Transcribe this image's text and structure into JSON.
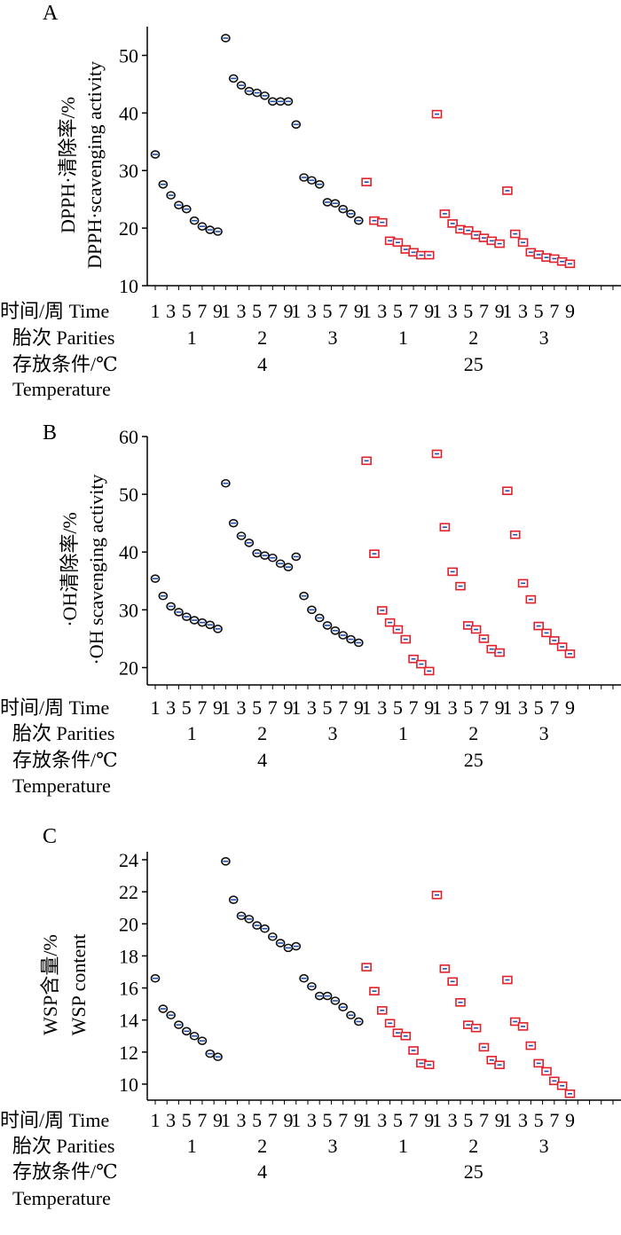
{
  "chart_data": [
    {
      "type": "scatter",
      "panel_label": "A",
      "ylabel": [
        "DPPH·清除率/%",
        "DPPH·scavenging activity"
      ],
      "ylim": [
        10,
        55
      ],
      "yticks": [
        10,
        20,
        30,
        40,
        50
      ],
      "row_labels": [
        "时间/周 Time",
        "胎次 Parities",
        "存放条件/℃",
        "Temperature"
      ],
      "time_ticks": [
        "1",
        "3",
        "5",
        "7",
        "9",
        "1",
        "3",
        "5",
        "7",
        "9",
        "1",
        "3",
        "5",
        "7",
        "9",
        "1",
        "3",
        "5",
        "7",
        "9",
        "1",
        "3",
        "5",
        "7",
        "9",
        "1",
        "3",
        "5",
        "7",
        "9"
      ],
      "parities": [
        "1",
        "2",
        "3",
        "1",
        "2",
        "3"
      ],
      "temperatures": [
        "4",
        "25"
      ],
      "series": [
        {
          "marker": "circle",
          "color": "#1f4fa8",
          "values": [
            [
              32.8,
              27.6,
              25.7,
              24.0,
              23.3,
              21.3,
              20.3,
              19.7,
              19.4
            ],
            [
              53.0,
              46.0,
              44.8,
              43.8,
              43.5,
              43.0,
              42.0,
              42.0,
              42.0
            ],
            [
              38.0,
              28.8,
              28.3,
              27.6,
              24.5,
              24.3,
              23.3,
              22.5,
              21.3
            ]
          ]
        },
        {
          "marker": "square",
          "color": "#e0202a",
          "values": [
            [
              28.0,
              21.3,
              21.0,
              17.8,
              17.5,
              16.3,
              15.8,
              15.3,
              15.3
            ],
            [
              39.8,
              22.5,
              20.8,
              19.8,
              19.6,
              18.8,
              18.3,
              17.8,
              17.3
            ],
            [
              26.5,
              19.0,
              17.5,
              15.8,
              15.4,
              14.9,
              14.7,
              14.2,
              13.8
            ]
          ]
        }
      ]
    },
    {
      "type": "scatter",
      "panel_label": "B",
      "ylabel": [
        "·OH清除率/%",
        "·OH scavenging activity"
      ],
      "ylim": [
        17,
        60
      ],
      "yticks": [
        20,
        30,
        40,
        50,
        60
      ],
      "row_labels": [
        "时间/周 Time",
        "胎次 Parities",
        "存放条件/℃",
        "Temperature"
      ],
      "time_ticks": [
        "1",
        "3",
        "5",
        "7",
        "9",
        "1",
        "3",
        "5",
        "7",
        "9",
        "1",
        "3",
        "5",
        "7",
        "9",
        "1",
        "3",
        "5",
        "7",
        "9",
        "1",
        "3",
        "5",
        "7",
        "9",
        "1",
        "3",
        "5",
        "7",
        "9"
      ],
      "parities": [
        "1",
        "2",
        "3",
        "1",
        "2",
        "3"
      ],
      "temperatures": [
        "4",
        "25"
      ],
      "series": [
        {
          "marker": "circle",
          "color": "#1f4fa8",
          "values": [
            [
              35.4,
              32.4,
              30.6,
              29.6,
              28.8,
              28.2,
              27.8,
              27.4,
              26.7
            ],
            [
              51.9,
              45.0,
              42.8,
              41.6,
              39.8,
              39.4,
              39.0,
              38.0,
              37.4
            ],
            [
              39.2,
              32.4,
              30.0,
              28.6,
              27.3,
              26.4,
              25.6,
              24.9,
              24.3
            ]
          ]
        },
        {
          "marker": "square",
          "color": "#e0202a",
          "values": [
            [
              55.8,
              39.7,
              29.9,
              27.8,
              26.6,
              24.9,
              21.5,
              20.6,
              19.4
            ],
            [
              57.0,
              44.3,
              36.6,
              34.1,
              27.3,
              26.6,
              25.0,
              23.2,
              22.6
            ],
            [
              50.6,
              43.0,
              34.6,
              31.8,
              27.2,
              26.0,
              24.7,
              23.6,
              22.4
            ]
          ]
        }
      ]
    },
    {
      "type": "scatter",
      "panel_label": "C",
      "ylabel": [
        "WSP含量/%",
        "WSP content"
      ],
      "ylim": [
        9,
        24.5
      ],
      "yticks": [
        10,
        12,
        14,
        16,
        18,
        20,
        22,
        24
      ],
      "row_labels": [
        "时间/周 Time",
        "胎次 Parities",
        "存放条件/℃",
        "Temperature"
      ],
      "time_ticks": [
        "1",
        "3",
        "5",
        "7",
        "9",
        "1",
        "3",
        "5",
        "7",
        "9",
        "1",
        "3",
        "5",
        "7",
        "9",
        "1",
        "3",
        "5",
        "7",
        "9",
        "1",
        "3",
        "5",
        "7",
        "9",
        "1",
        "3",
        "5",
        "7",
        "9"
      ],
      "parities": [
        "1",
        "2",
        "3",
        "1",
        "2",
        "3"
      ],
      "temperatures": [
        "4",
        "25"
      ],
      "series": [
        {
          "marker": "circle",
          "color": "#1f4fa8",
          "values": [
            [
              16.6,
              14.7,
              14.3,
              13.7,
              13.3,
              13.0,
              12.7,
              11.9,
              11.7
            ],
            [
              23.9,
              21.5,
              20.5,
              20.3,
              19.9,
              19.7,
              19.2,
              18.8,
              18.5
            ],
            [
              18.6,
              16.6,
              16.1,
              15.5,
              15.5,
              15.2,
              14.8,
              14.3,
              13.9
            ]
          ]
        },
        {
          "marker": "square",
          "color": "#e0202a",
          "values": [
            [
              17.3,
              15.8,
              14.6,
              13.8,
              13.2,
              13.0,
              12.1,
              11.3,
              11.2
            ],
            [
              21.8,
              17.2,
              16.4,
              15.1,
              13.7,
              13.5,
              12.3,
              11.5,
              11.2
            ],
            [
              16.5,
              13.9,
              13.6,
              12.4,
              11.3,
              10.8,
              10.2,
              9.9,
              9.4
            ]
          ]
        }
      ]
    }
  ]
}
